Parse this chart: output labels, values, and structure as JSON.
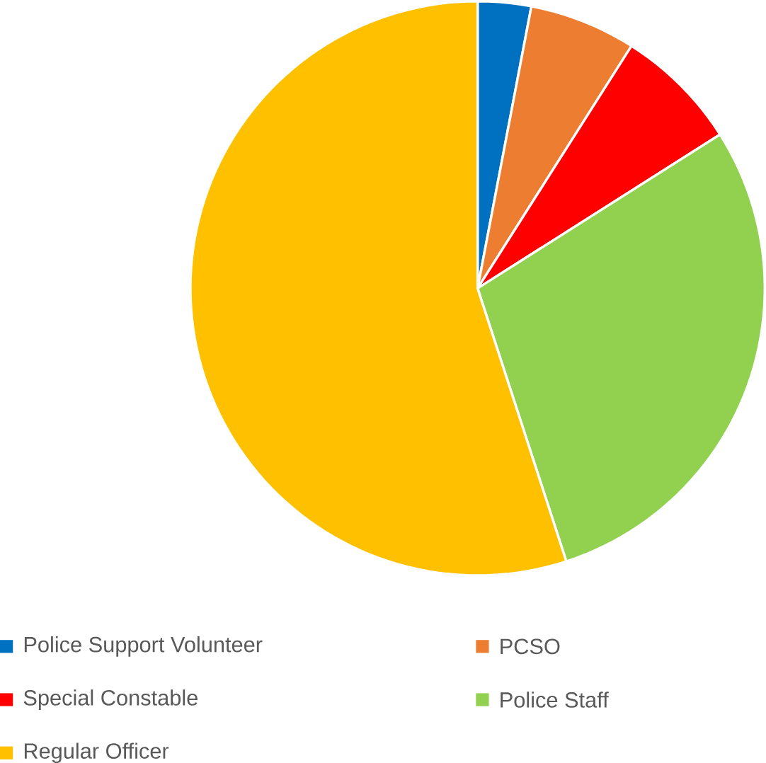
{
  "chart_data": {
    "type": "pie",
    "categories": [
      "Police Support Volunteer",
      "PCSO",
      "Special Constable",
      "Police Staff",
      "Regular Officer"
    ],
    "values": [
      3,
      6,
      7,
      29,
      55
    ],
    "colors": [
      "#0070c0",
      "#ed7d31",
      "#ff0000",
      "#92d050",
      "#ffc000"
    ],
    "legend": "bottom"
  }
}
